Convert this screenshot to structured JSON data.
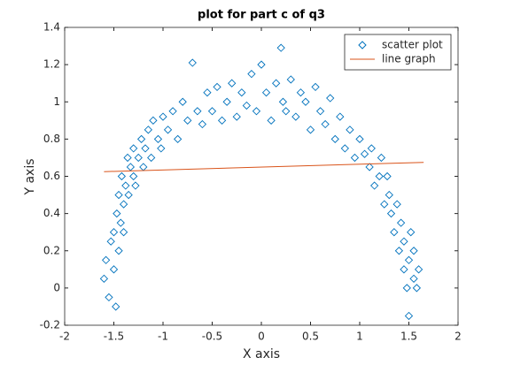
{
  "chart_data": {
    "type": "scatter",
    "title": "plot for part c of q3",
    "xlabel": "X axis",
    "ylabel": "Y axis",
    "xlim": [
      -2,
      2
    ],
    "ylim": [
      -0.2,
      1.4
    ],
    "xticks": [
      -2,
      -1.5,
      -1,
      -0.5,
      0,
      0.5,
      1,
      1.5,
      2
    ],
    "yticks": [
      -0.2,
      0,
      0.2,
      0.4,
      0.6,
      0.8,
      1,
      1.2,
      1.4
    ],
    "legend": "upper right",
    "series": [
      {
        "name": "scatter plot",
        "color": "#0072bd",
        "marker": "diamond",
        "x": [
          -1.6,
          -1.58,
          -1.55,
          -1.53,
          -1.5,
          -1.5,
          -1.48,
          -1.47,
          -1.45,
          -1.45,
          -1.43,
          -1.42,
          -1.4,
          -1.4,
          -1.38,
          -1.36,
          -1.35,
          -1.33,
          -1.3,
          -1.3,
          -1.28,
          -1.25,
          -1.22,
          -1.2,
          -1.18,
          -1.15,
          -1.12,
          -1.1,
          -1.05,
          -1.02,
          -1.0,
          -0.95,
          -0.9,
          -0.85,
          -0.8,
          -0.75,
          -0.7,
          -0.65,
          -0.6,
          -0.55,
          -0.5,
          -0.45,
          -0.4,
          -0.35,
          -0.3,
          -0.25,
          -0.2,
          -0.15,
          -0.1,
          -0.05,
          0,
          0.05,
          0.1,
          0.15,
          0.2,
          0.22,
          0.25,
          0.3,
          0.35,
          0.4,
          0.45,
          0.5,
          0.55,
          0.6,
          0.65,
          0.7,
          0.75,
          0.8,
          0.85,
          0.9,
          0.95,
          1.0,
          1.05,
          1.1,
          1.12,
          1.15,
          1.2,
          1.22,
          1.25,
          1.28,
          1.3,
          1.32,
          1.35,
          1.38,
          1.4,
          1.42,
          1.45,
          1.45,
          1.48,
          1.5,
          1.5,
          1.52,
          1.55,
          1.55,
          1.58,
          1.6
        ],
        "values": [
          0.05,
          0.15,
          -0.05,
          0.25,
          0.1,
          0.3,
          -0.1,
          0.4,
          0.2,
          0.5,
          0.35,
          0.6,
          0.45,
          0.3,
          0.55,
          0.7,
          0.5,
          0.65,
          0.6,
          0.75,
          0.55,
          0.7,
          0.8,
          0.65,
          0.75,
          0.85,
          0.7,
          0.9,
          0.8,
          0.75,
          0.92,
          0.85,
          0.95,
          0.8,
          1.0,
          0.9,
          1.21,
          0.95,
          0.88,
          1.05,
          0.95,
          1.08,
          0.9,
          1.0,
          1.1,
          0.92,
          1.05,
          0.98,
          1.15,
          0.95,
          1.2,
          1.05,
          0.9,
          1.1,
          1.29,
          1.0,
          0.95,
          1.12,
          0.92,
          1.05,
          1.0,
          0.85,
          1.08,
          0.95,
          0.88,
          1.02,
          0.8,
          0.92,
          0.75,
          0.85,
          0.7,
          0.8,
          0.72,
          0.65,
          0.75,
          0.55,
          0.6,
          0.7,
          0.45,
          0.6,
          0.5,
          0.4,
          0.3,
          0.45,
          0.2,
          0.35,
          0.1,
          0.25,
          0.0,
          0.15,
          -0.15,
          0.3,
          0.05,
          0.2,
          0.0,
          0.1
        ]
      },
      {
        "name": "line graph",
        "color": "#d95319",
        "marker": "line",
        "x": [
          -1.6,
          1.65
        ],
        "values": [
          0.625,
          0.675
        ]
      }
    ]
  }
}
